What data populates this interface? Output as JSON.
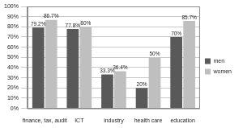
{
  "chart_data": {
    "type": "bar",
    "categories": [
      "finance, tax, audit",
      "ICT",
      "industry",
      "health care",
      "education"
    ],
    "series": [
      {
        "name": "men",
        "color": "#595959",
        "values": [
          79.2,
          77.8,
          33.3,
          20,
          70
        ],
        "value_labels": [
          "79.2%",
          "77.8%",
          "33.3%",
          "20%",
          "70%"
        ]
      },
      {
        "name": "women",
        "color": "#bfbfbf",
        "values": [
          86.7,
          80,
          36.4,
          50,
          85.7
        ],
        "value_labels": [
          "86.7%",
          "80%",
          "36.4%",
          "50%",
          "85.7%"
        ]
      }
    ],
    "ylim": [
      0,
      100
    ],
    "yticks": [
      {
        "value": 0,
        "label": "0%"
      },
      {
        "value": 10,
        "label": "10%"
      },
      {
        "value": 20,
        "label": "20%"
      },
      {
        "value": 30,
        "label": "30%"
      },
      {
        "value": 40,
        "label": "40%"
      },
      {
        "value": 50,
        "label": "50%"
      },
      {
        "value": 60,
        "label": "60%"
      },
      {
        "value": 70,
        "label": "70%"
      },
      {
        "value": 80,
        "label": "80%"
      },
      {
        "value": 90,
        "label": "90%"
      },
      {
        "value": 100,
        "label": "100%"
      }
    ],
    "grid": true,
    "legend": "right",
    "data_labels": true
  }
}
